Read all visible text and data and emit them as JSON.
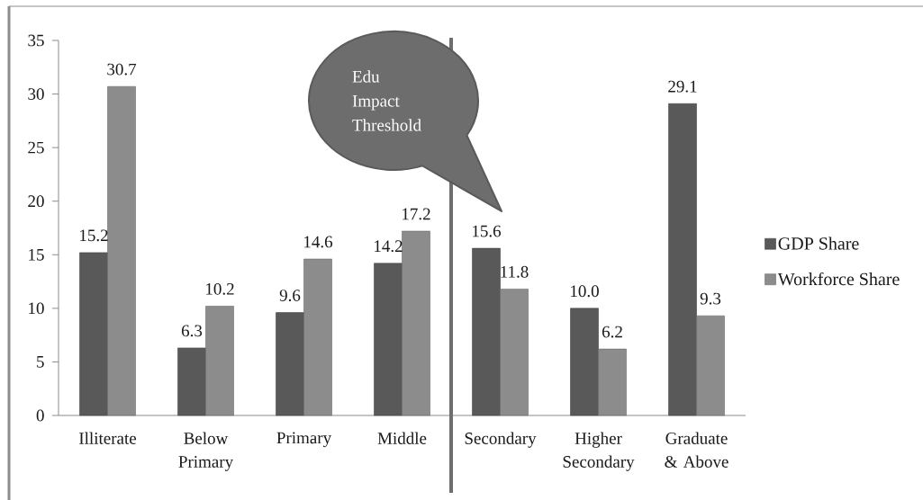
{
  "chart_data": {
    "type": "bar",
    "categories": [
      "Illiterate",
      "Below Primary",
      "Primary",
      "Middle",
      "Secondary",
      "Higher Secondary",
      "Graduate & Above"
    ],
    "series": [
      {
        "name": "GDP Share",
        "color": "#595959",
        "values": [
          15.2,
          6.3,
          9.6,
          14.2,
          15.6,
          10.0,
          29.1
        ],
        "value_labels": [
          "15.2",
          "6.3",
          "9.6",
          "14.2",
          "15.6",
          "10.0",
          "29.1"
        ]
      },
      {
        "name": "Workforce Share",
        "color": "#8c8c8c",
        "values": [
          30.7,
          10.2,
          14.6,
          17.2,
          11.8,
          6.2,
          9.3
        ],
        "value_labels": [
          "30.7",
          "10.2",
          "14.6",
          "17.2",
          "11.8",
          "6.2",
          "9.3"
        ]
      }
    ],
    "ylim": [
      0,
      35
    ],
    "yticks": [
      0,
      5,
      10,
      15,
      20,
      25,
      30,
      35
    ],
    "legend": "right",
    "annotations": [
      "Edu Impact Threshold"
    ]
  }
}
